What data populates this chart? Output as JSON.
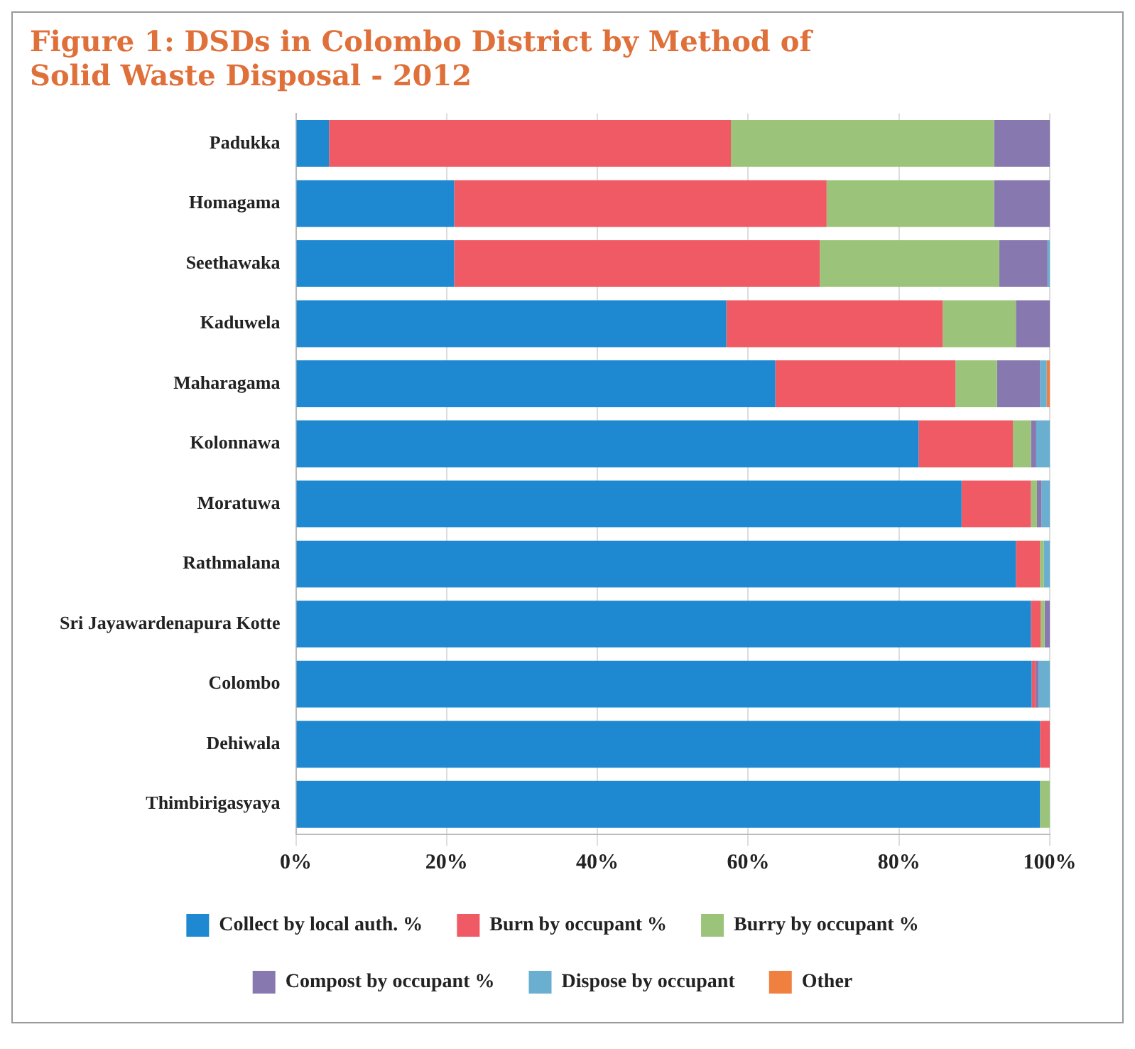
{
  "chart_data": {
    "type": "bar",
    "orientation": "horizontal",
    "stacked": true,
    "title": "Figure 1: DSDs in Colombo District by Method of Solid Waste Disposal - 2012",
    "categories": [
      "Padukka",
      "Homagama",
      "Seethawaka",
      "Kaduwela",
      "Maharagama",
      "Kolonnawa",
      "Moratuwa",
      "Rathmalana",
      "Sri Jayawardenapura Kotte",
      "Colombo",
      "Dehiwala",
      "Thimbirigasyaya"
    ],
    "series": [
      {
        "name": "Collect by local auth. %",
        "color": "#1e88d0",
        "values": [
          4.4,
          21,
          21,
          57.1,
          63.6,
          82.6,
          88.3,
          95.5,
          97.5,
          97.6,
          98.7,
          98.7
        ]
      },
      {
        "name": "Burn by occupant %",
        "color": "#f05a64",
        "values": [
          53.3,
          49.4,
          48.5,
          28.7,
          23.9,
          12.5,
          9.2,
          3.2,
          1.3,
          0.5,
          1.3,
          0
        ]
      },
      {
        "name": "Burry by occupant %",
        "color": "#9bc47a",
        "values": [
          34.9,
          22.2,
          23.8,
          9.7,
          5.5,
          2.4,
          0.8,
          0.5,
          0.5,
          0,
          0,
          1.3
        ]
      },
      {
        "name": "Compost by occupant %",
        "color": "#8878b0",
        "values": [
          7.4,
          7.4,
          6.4,
          4.5,
          5.7,
          0.7,
          0.6,
          0,
          0.7,
          0.4,
          0,
          0
        ]
      },
      {
        "name": "Dispose by occupant",
        "color": "#6aaed0",
        "values": [
          0,
          0,
          0.3,
          0,
          0.9,
          1.8,
          1.1,
          0.8,
          0,
          1.5,
          0,
          0
        ]
      },
      {
        "name": "Other",
        "color": "#f08040",
        "values": [
          0,
          0,
          0,
          0,
          0.4,
          0,
          0,
          0,
          0,
          0,
          0,
          0
        ]
      }
    ],
    "xlim": [
      0,
      100
    ],
    "xticks": [
      {
        "value": 0,
        "label": "0%"
      },
      {
        "value": 20,
        "label": "20%"
      },
      {
        "value": 40,
        "label": "40%"
      },
      {
        "value": 60,
        "label": "60%"
      },
      {
        "value": 80,
        "label": "80%"
      },
      {
        "value": 100,
        "label": "100%"
      }
    ],
    "grid": "x",
    "legend": "bottom"
  }
}
